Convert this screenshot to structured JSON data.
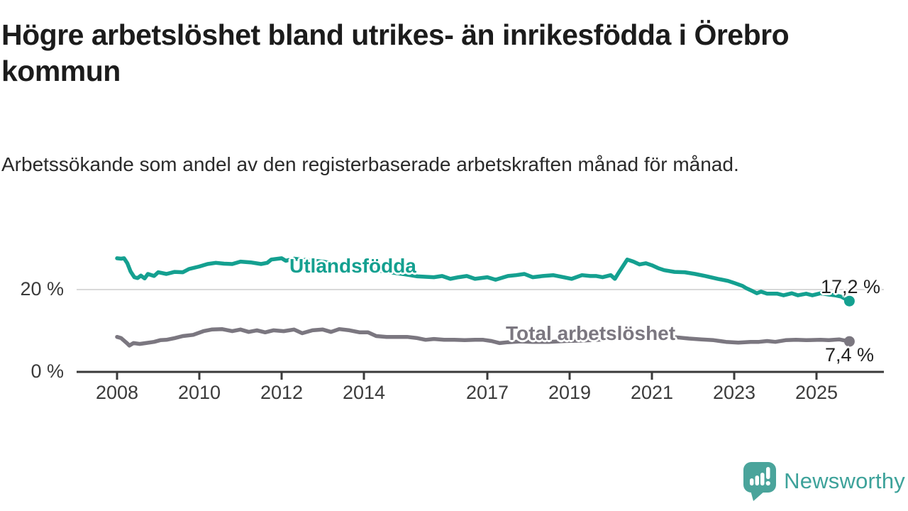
{
  "header": {
    "title": "Högre arbetslöshet bland utrikes- än inrikesfödda i Örebro kommun",
    "subtitle": "Arbetssökande som andel av den registerbaserade arbetskraften månad för månad."
  },
  "footer": {
    "brand": "Newsworthy",
    "logo_icon": "newsworthy-speech-bubble-barchart-icon"
  },
  "chart_data": {
    "type": "line",
    "title": "Högre arbetslöshet bland utrikes- än inrikesfödda i Örebro kommun",
    "subtitle": "Arbetssökande som andel av den registerbaserade arbetskraften månad för månad.",
    "unit": "%",
    "grid": "horizontal-only",
    "legend": "inline-series-labels",
    "colors": {
      "axis": "#3a3a3a",
      "grid": "#d9d9d9",
      "value_label": "#222222"
    },
    "x_axis": {
      "range": [
        2007.0,
        2026.6
      ],
      "ticks": [
        2008,
        2010,
        2012,
        2014,
        2017,
        2019,
        2021,
        2023,
        2025
      ]
    },
    "y_axis": {
      "range": [
        0,
        31
      ],
      "ticks": [
        {
          "value": 0,
          "label": "0 %"
        },
        {
          "value": 20,
          "label": "20 %"
        }
      ]
    },
    "series": [
      {
        "name": "Utlandsfödda",
        "color": "#14a090",
        "end_label": "17,2 %",
        "end_value": 17.2,
        "points": [
          [
            2008.0,
            27.6
          ],
          [
            2008.1,
            27.5
          ],
          [
            2008.17,
            27.6
          ],
          [
            2008.25,
            26.4
          ],
          [
            2008.33,
            24.4
          ],
          [
            2008.42,
            23.0
          ],
          [
            2008.5,
            22.8
          ],
          [
            2008.58,
            23.4
          ],
          [
            2008.67,
            22.7
          ],
          [
            2008.75,
            23.8
          ],
          [
            2008.9,
            23.3
          ],
          [
            2009.0,
            24.2
          ],
          [
            2009.2,
            23.8
          ],
          [
            2009.4,
            24.3
          ],
          [
            2009.6,
            24.2
          ],
          [
            2009.75,
            25.0
          ],
          [
            2010.0,
            25.6
          ],
          [
            2010.2,
            26.2
          ],
          [
            2010.4,
            26.5
          ],
          [
            2010.6,
            26.3
          ],
          [
            2010.8,
            26.2
          ],
          [
            2011.0,
            26.8
          ],
          [
            2011.25,
            26.6
          ],
          [
            2011.5,
            26.2
          ],
          [
            2011.65,
            26.5
          ],
          [
            2011.75,
            27.3
          ],
          [
            2012.0,
            27.6
          ],
          [
            2012.1,
            27.0
          ],
          [
            2012.3,
            27.5
          ],
          [
            2012.5,
            27.3
          ],
          [
            2013.0,
            26.8
          ],
          [
            2013.5,
            26.0
          ],
          [
            2014.0,
            25.2
          ],
          [
            2014.5,
            24.4
          ],
          [
            2015.0,
            23.7
          ],
          [
            2015.3,
            23.2
          ],
          [
            2015.7,
            23.0
          ],
          [
            2015.9,
            23.3
          ],
          [
            2016.1,
            22.6
          ],
          [
            2016.3,
            23.0
          ],
          [
            2016.5,
            23.3
          ],
          [
            2016.7,
            22.6
          ],
          [
            2017.0,
            23.0
          ],
          [
            2017.2,
            22.4
          ],
          [
            2017.5,
            23.3
          ],
          [
            2017.7,
            23.5
          ],
          [
            2017.9,
            23.8
          ],
          [
            2018.1,
            23.0
          ],
          [
            2018.35,
            23.3
          ],
          [
            2018.6,
            23.5
          ],
          [
            2018.85,
            23.0
          ],
          [
            2019.05,
            22.6
          ],
          [
            2019.3,
            23.5
          ],
          [
            2019.5,
            23.3
          ],
          [
            2019.65,
            23.3
          ],
          [
            2019.8,
            23.0
          ],
          [
            2020.0,
            23.5
          ],
          [
            2020.1,
            22.6
          ],
          [
            2020.2,
            24.2
          ],
          [
            2020.4,
            27.3
          ],
          [
            2020.55,
            26.8
          ],
          [
            2020.7,
            26.1
          ],
          [
            2020.85,
            26.4
          ],
          [
            2021.0,
            25.9
          ],
          [
            2021.15,
            25.2
          ],
          [
            2021.3,
            24.7
          ],
          [
            2021.55,
            24.3
          ],
          [
            2021.8,
            24.2
          ],
          [
            2022.05,
            23.8
          ],
          [
            2022.3,
            23.3
          ],
          [
            2022.6,
            22.6
          ],
          [
            2022.85,
            22.1
          ],
          [
            2023.0,
            21.6
          ],
          [
            2023.2,
            20.9
          ],
          [
            2023.3,
            20.3
          ],
          [
            2023.45,
            19.6
          ],
          [
            2023.55,
            19.1
          ],
          [
            2023.65,
            19.5
          ],
          [
            2023.8,
            19.0
          ],
          [
            2024.05,
            19.0
          ],
          [
            2024.2,
            18.6
          ],
          [
            2024.4,
            19.1
          ],
          [
            2024.55,
            18.6
          ],
          [
            2024.75,
            19.0
          ],
          [
            2024.9,
            18.6
          ],
          [
            2025.1,
            19.1
          ],
          [
            2025.3,
            18.8
          ],
          [
            2025.45,
            18.6
          ],
          [
            2025.6,
            18.3
          ],
          [
            2025.8,
            17.2
          ]
        ]
      },
      {
        "name": "Total arbetslöshet",
        "color": "#7b7780",
        "end_label": "7,4 %",
        "end_value": 7.4,
        "points": [
          [
            2008.0,
            8.5
          ],
          [
            2008.1,
            8.2
          ],
          [
            2008.25,
            6.9
          ],
          [
            2008.3,
            6.4
          ],
          [
            2008.4,
            7.0
          ],
          [
            2008.55,
            6.8
          ],
          [
            2008.7,
            7.0
          ],
          [
            2008.9,
            7.3
          ],
          [
            2009.05,
            7.7
          ],
          [
            2009.2,
            7.8
          ],
          [
            2009.4,
            8.2
          ],
          [
            2009.6,
            8.7
          ],
          [
            2009.85,
            9.0
          ],
          [
            2010.1,
            9.9
          ],
          [
            2010.3,
            10.3
          ],
          [
            2010.55,
            10.4
          ],
          [
            2010.8,
            9.9
          ],
          [
            2011.0,
            10.3
          ],
          [
            2011.2,
            9.7
          ],
          [
            2011.4,
            10.1
          ],
          [
            2011.6,
            9.6
          ],
          [
            2011.8,
            10.1
          ],
          [
            2012.05,
            9.9
          ],
          [
            2012.3,
            10.3
          ],
          [
            2012.5,
            9.4
          ],
          [
            2012.75,
            10.1
          ],
          [
            2013.0,
            10.3
          ],
          [
            2013.2,
            9.7
          ],
          [
            2013.4,
            10.4
          ],
          [
            2013.65,
            10.1
          ],
          [
            2013.9,
            9.6
          ],
          [
            2014.1,
            9.6
          ],
          [
            2014.3,
            8.7
          ],
          [
            2014.55,
            8.5
          ],
          [
            2014.8,
            8.5
          ],
          [
            2015.05,
            8.5
          ],
          [
            2015.3,
            8.2
          ],
          [
            2015.5,
            7.8
          ],
          [
            2015.7,
            8.0
          ],
          [
            2015.95,
            7.8
          ],
          [
            2016.2,
            7.8
          ],
          [
            2016.45,
            7.7
          ],
          [
            2016.7,
            7.8
          ],
          [
            2016.9,
            7.8
          ],
          [
            2017.1,
            7.5
          ],
          [
            2017.3,
            7.0
          ],
          [
            2017.5,
            7.2
          ],
          [
            2017.8,
            7.4
          ],
          [
            2018.1,
            7.3
          ],
          [
            2018.5,
            7.3
          ],
          [
            2018.9,
            7.5
          ],
          [
            2019.3,
            7.6
          ],
          [
            2019.7,
            7.8
          ],
          [
            2020.0,
            8.1
          ],
          [
            2020.3,
            9.4
          ],
          [
            2020.5,
            9.6
          ],
          [
            2020.8,
            9.4
          ],
          [
            2021.0,
            9.2
          ],
          [
            2021.3,
            8.8
          ],
          [
            2021.6,
            8.4
          ],
          [
            2021.9,
            8.1
          ],
          [
            2022.2,
            7.9
          ],
          [
            2022.5,
            7.7
          ],
          [
            2022.8,
            7.3
          ],
          [
            2023.1,
            7.1
          ],
          [
            2023.4,
            7.3
          ],
          [
            2023.6,
            7.3
          ],
          [
            2023.8,
            7.5
          ],
          [
            2024.0,
            7.3
          ],
          [
            2024.25,
            7.7
          ],
          [
            2024.5,
            7.8
          ],
          [
            2024.75,
            7.7
          ],
          [
            2025.1,
            7.8
          ],
          [
            2025.3,
            7.7
          ],
          [
            2025.55,
            7.9
          ],
          [
            2025.8,
            7.4
          ]
        ]
      }
    ]
  }
}
